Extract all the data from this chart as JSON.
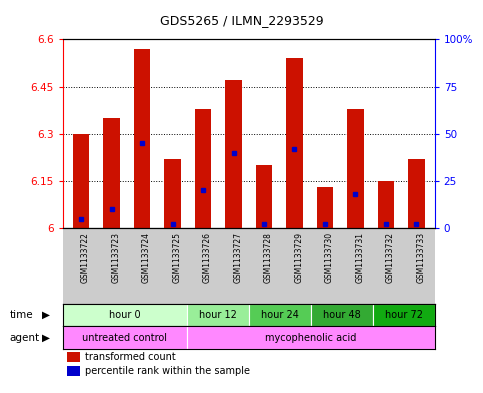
{
  "title": "GDS5265 / ILMN_2293529",
  "samples": [
    "GSM1133722",
    "GSM1133723",
    "GSM1133724",
    "GSM1133725",
    "GSM1133726",
    "GSM1133727",
    "GSM1133728",
    "GSM1133729",
    "GSM1133730",
    "GSM1133731",
    "GSM1133732",
    "GSM1133733"
  ],
  "transformed_counts": [
    6.3,
    6.35,
    6.57,
    6.22,
    6.38,
    6.47,
    6.2,
    6.54,
    6.13,
    6.38,
    6.15,
    6.22
  ],
  "percentile_ranks": [
    5,
    10,
    45,
    2,
    20,
    40,
    2,
    42,
    2,
    18,
    2,
    2
  ],
  "ylim_left": [
    6.0,
    6.6
  ],
  "ylim_right": [
    0,
    100
  ],
  "yticks_left": [
    6.0,
    6.15,
    6.3,
    6.45,
    6.6
  ],
  "yticks_right": [
    0,
    25,
    50,
    75,
    100
  ],
  "ytick_labels_left": [
    "6",
    "6.15",
    "6.3",
    "6.45",
    "6.6"
  ],
  "ytick_labels_right": [
    "0",
    "25",
    "50",
    "75",
    "100%"
  ],
  "bar_color": "#CC1100",
  "percentile_color": "#0000CC",
  "time_groups": [
    {
      "label": "hour 0",
      "start": 0,
      "end": 4,
      "color": "#CCFFCC"
    },
    {
      "label": "hour 12",
      "start": 4,
      "end": 6,
      "color": "#99EE99"
    },
    {
      "label": "hour 24",
      "start": 6,
      "end": 8,
      "color": "#55CC55"
    },
    {
      "label": "hour 48",
      "start": 8,
      "end": 10,
      "color": "#33AA33"
    },
    {
      "label": "hour 72",
      "start": 10,
      "end": 12,
      "color": "#11AA11"
    }
  ],
  "agent_groups": [
    {
      "label": "untreated control",
      "start": 0,
      "end": 4,
      "color": "#FF88FF"
    },
    {
      "label": "mycophenolic acid",
      "start": 4,
      "end": 12,
      "color": "#FF88FF"
    }
  ],
  "bar_width": 0.55,
  "base_value": 6.0,
  "sample_bg_color": "#CCCCCC"
}
